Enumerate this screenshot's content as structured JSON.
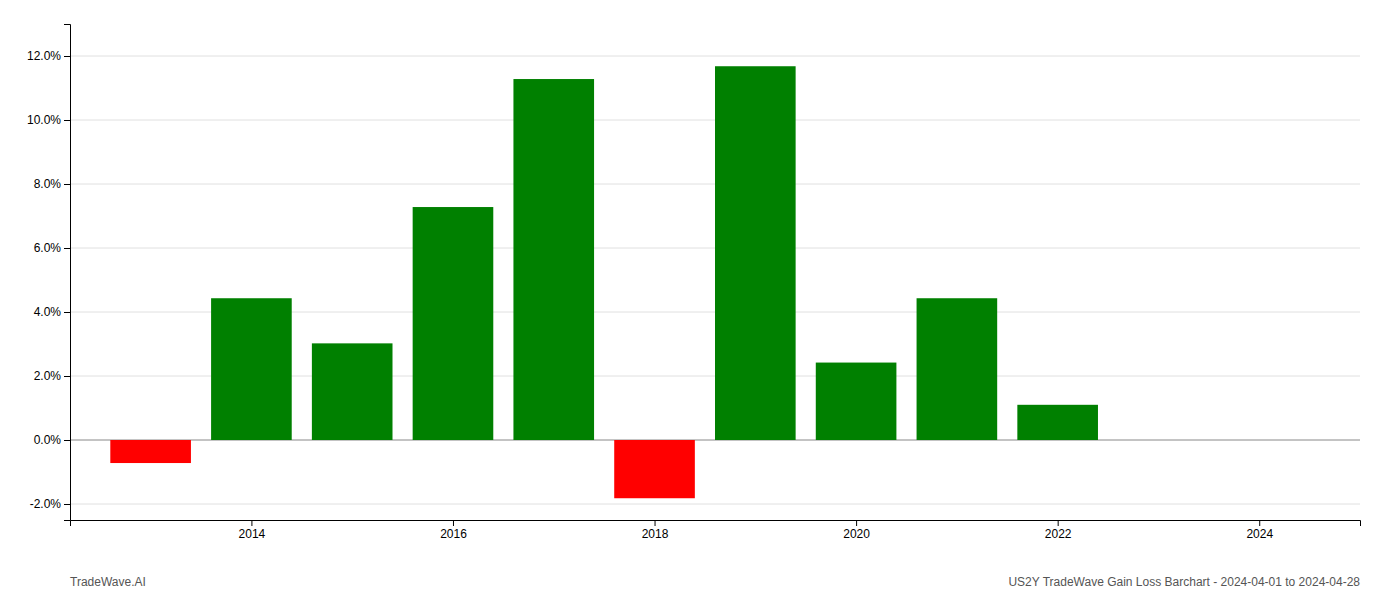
{
  "chart_data": {
    "type": "bar",
    "x": [
      2013,
      2014,
      2015,
      2016,
      2017,
      2018,
      2019,
      2020,
      2021,
      2022
    ],
    "values": [
      -0.72,
      4.43,
      3.02,
      7.28,
      11.28,
      -1.82,
      11.68,
      2.42,
      4.43,
      1.1
    ],
    "colors": [
      "#ff0000",
      "#008000",
      "#008000",
      "#008000",
      "#008000",
      "#ff0000",
      "#008000",
      "#008000",
      "#008000",
      "#008000"
    ],
    "xlim": [
      2012.2,
      2025.0
    ],
    "xticks": [
      2014,
      2016,
      2018,
      2020,
      2022,
      2024
    ],
    "ylim": [
      -2.5,
      13.0
    ],
    "yticks": [
      {
        "value": -2.0,
        "label": "-2.0%"
      },
      {
        "value": 0.0,
        "label": "0.0%"
      },
      {
        "value": 2.0,
        "label": "2.0%"
      },
      {
        "value": 4.0,
        "label": "4.0%"
      },
      {
        "value": 6.0,
        "label": "6.0%"
      },
      {
        "value": 8.0,
        "label": "8.0%"
      },
      {
        "value": 10.0,
        "label": "10.0%"
      },
      {
        "value": 12.0,
        "label": "12.0%"
      }
    ],
    "grid": true,
    "annotations": [
      "TradeWave.AI",
      "US2Y TradeWave Gain Loss Barchart - 2024-04-01 to 2024-04-28"
    ]
  }
}
